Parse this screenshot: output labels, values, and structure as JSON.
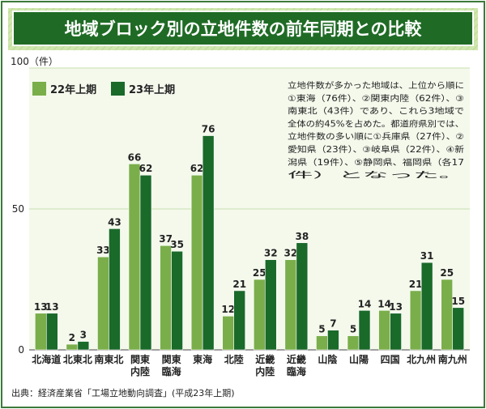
{
  "title": "地域ブロック別の立地件数の前年同期との比較",
  "source": "出典：経済産業省「工場立地動向調査」(平成23年上期)",
  "note_lines": [
    "立地件数が多かった地域は、上位から順に",
    "①東海（76件）、②関東内陸（62件）、③",
    "南東北（43件）であり、これら3地域で",
    "全体の約45%を占めた。都道府県別では、",
    "立地件数の多い順に①兵庫県（27件）、②",
    "愛知県（23件）、③岐阜県（22件）、④新",
    "潟県（19件）、⑤静岡県、福岡県（各17",
    "件）となった。"
  ],
  "colors": {
    "frame": "#2a6c2a",
    "title_bg": "#1f6b25",
    "series_2022": "#7aae4a",
    "series_2023": "#1a6a2a",
    "grid": "#c9dfb0",
    "plot_bg": "#f4f9ec"
  },
  "chart_data": {
    "type": "bar",
    "ylabel": "100（件）",
    "ylim": [
      0,
      100
    ],
    "yticks": [
      0,
      50,
      100
    ],
    "legend_position": "top-left",
    "categories": [
      [
        "北海道"
      ],
      [
        "北東北"
      ],
      [
        "南東北"
      ],
      [
        "関東",
        "内陸"
      ],
      [
        "関東",
        "臨海"
      ],
      [
        "東海"
      ],
      [
        "北陸"
      ],
      [
        "近畿",
        "内陸"
      ],
      [
        "近畿",
        "臨海"
      ],
      [
        "山陰"
      ],
      [
        "山陽"
      ],
      [
        "四国"
      ],
      [
        "北九州"
      ],
      [
        "南九州"
      ]
    ],
    "series": [
      {
        "name": "22年上期",
        "values": [
          13,
          2,
          33,
          66,
          37,
          62,
          12,
          25,
          32,
          5,
          5,
          14,
          21,
          25
        ]
      },
      {
        "name": "23年上期",
        "values": [
          13,
          3,
          43,
          62,
          35,
          76,
          21,
          32,
          38,
          7,
          14,
          13,
          31,
          15
        ]
      }
    ]
  }
}
